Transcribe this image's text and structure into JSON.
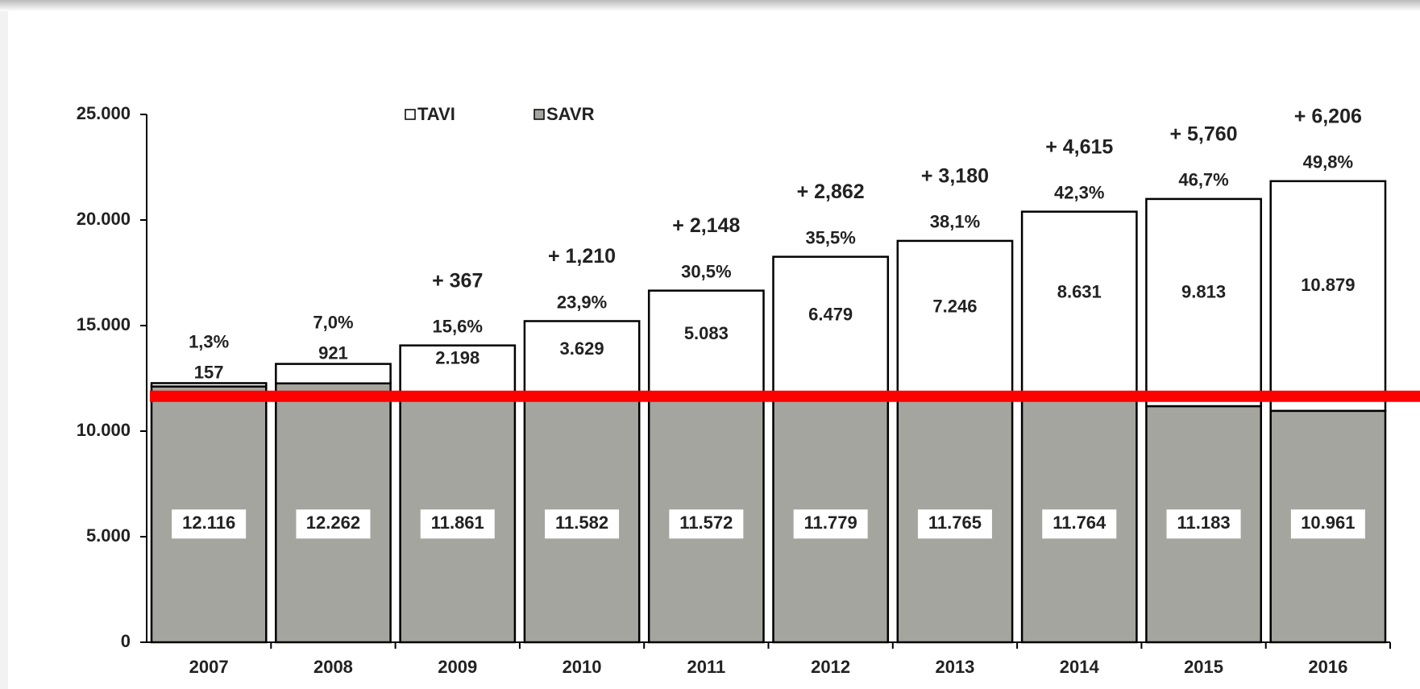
{
  "chart_data": {
    "type": "stacked_bar",
    "categories": [
      "2007",
      "2008",
      "2009",
      "2010",
      "2011",
      "2012",
      "2013",
      "2014",
      "2015",
      "2016"
    ],
    "series": [
      {
        "name": "SAVR",
        "color": "#a5a5a0",
        "values": [
          12116,
          12262,
          11861,
          11582,
          11572,
          11779,
          11765,
          11764,
          11183,
          10961
        ],
        "value_labels": [
          "12.116",
          "12.262",
          "11.861",
          "11.582",
          "11.572",
          "11.779",
          "11.765",
          "11.764",
          "11.183",
          "10.961"
        ]
      },
      {
        "name": "TAVI",
        "color": "#ffffff",
        "values": [
          157,
          921,
          2198,
          3629,
          5083,
          6479,
          7246,
          8631,
          9813,
          10879
        ],
        "value_labels": [
          "157",
          "921",
          "2.198",
          "3.629",
          "5.083",
          "6.479",
          "7.246",
          "8.631",
          "9.813",
          "10.879"
        ]
      }
    ],
    "share_labels": [
      "1,3%",
      "7,0%",
      "15,6%",
      "23,9%",
      "30,5%",
      "35,5%",
      "38,1%",
      "42,3%",
      "46,7%",
      "49,8%"
    ],
    "growth_labels": [
      null,
      null,
      "+ 367",
      "+ 1,210",
      "+ 2,148",
      "+ 2,862",
      "+ 3,180",
      "+ 4,615",
      "+ 5,760",
      "+ 6,206"
    ],
    "ylim": [
      0,
      25000
    ],
    "yticks": [
      0,
      {
        "value": 5000,
        "label": "5.000"
      },
      {
        "value": 10000,
        "label": "10.000"
      },
      {
        "value": 15000,
        "label": "15.000"
      },
      {
        "value": 20000,
        "label": "20.000"
      },
      {
        "value": 25000,
        "label": "25.000"
      }
    ],
    "reference_line": {
      "value": 11650,
      "color": "#ff0000"
    }
  }
}
